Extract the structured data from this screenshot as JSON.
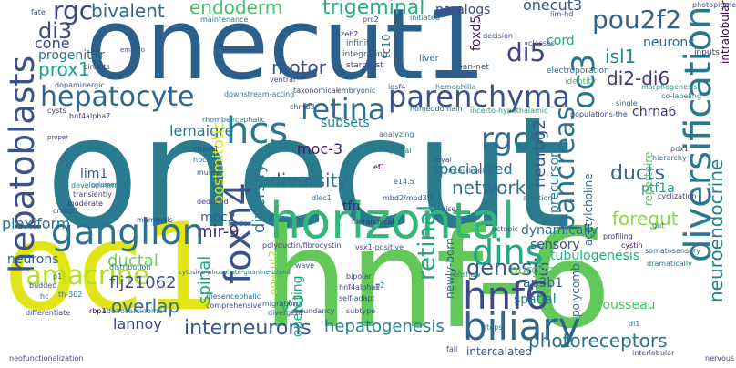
{
  "cloud": {
    "words": [
      {
        "text": "onecut",
        "color": "#2a7b8e",
        "orient": "h"
      },
      {
        "text": "onecut1",
        "color": "#2d5f8b",
        "orient": "h"
      },
      {
        "text": "hnf-6",
        "color": "#63c85a",
        "orient": "h"
      },
      {
        "text": "oc1",
        "color": "#e3e418",
        "orient": "h"
      },
      {
        "text": "horizontal",
        "color": "#34b679",
        "orient": "h"
      },
      {
        "text": "hepatoblasts",
        "color": "#3b528b",
        "orient": "v"
      },
      {
        "text": "diversification",
        "color": "#2a788e",
        "orient": "v"
      },
      {
        "text": "ganglion",
        "color": "#2c718e",
        "orient": "h"
      },
      {
        "text": "foxn4",
        "color": "#3b528b",
        "orient": "v"
      },
      {
        "text": "hnf6",
        "color": "#3e4989",
        "orient": "h"
      },
      {
        "text": "biliary",
        "color": "#32658e",
        "orient": "h"
      },
      {
        "text": "parenchyma",
        "color": "#3b518b",
        "orient": "h"
      },
      {
        "text": "hepatocyte",
        "color": "#31678e",
        "orient": "h"
      },
      {
        "text": "retina",
        "color": "#2e6f8e",
        "orient": "h"
      },
      {
        "text": "dins",
        "color": "#22a884",
        "orient": "h"
      },
      {
        "text": "rgcs",
        "color": "#2e6e8e",
        "orient": "h"
      },
      {
        "text": "pancreas",
        "color": "#2c728e",
        "orient": "v"
      },
      {
        "text": "hcs",
        "color": "#29798e",
        "orient": "h"
      },
      {
        "text": "amacrine",
        "color": "#b5de2b",
        "orient": "h"
      },
      {
        "text": "interneurons",
        "color": "#39568c",
        "orient": "h"
      },
      {
        "text": "di5",
        "color": "#414487",
        "orient": "h"
      },
      {
        "text": "oc3",
        "color": "#2c738e",
        "orient": "v"
      },
      {
        "text": "pou2f2",
        "color": "#33638d",
        "orient": "h"
      },
      {
        "text": "genesis",
        "color": "#365d8d",
        "orient": "h"
      },
      {
        "text": "diversity",
        "color": "#2d708e",
        "orient": "h"
      },
      {
        "text": "network",
        "color": "#2c718e",
        "orient": "h"
      },
      {
        "text": "retinal",
        "color": "#22a884",
        "orient": "v"
      },
      {
        "text": "neuroendocrine",
        "color": "#26828e",
        "orient": "v"
      },
      {
        "text": "rgc",
        "color": "#404588",
        "orient": "h"
      },
      {
        "text": "di3",
        "color": "#3e4989",
        "orient": "h"
      },
      {
        "text": "prox1",
        "color": "#1fa188",
        "orient": "h"
      },
      {
        "text": "bivalent",
        "color": "#31688e",
        "orient": "h"
      },
      {
        "text": "endoderm",
        "color": "#46c06f",
        "orient": "h"
      },
      {
        "text": "trigeminal",
        "color": "#28ae80",
        "orient": "h"
      },
      {
        "text": "onecut3",
        "color": "#38588c",
        "orient": "h"
      },
      {
        "text": "foregut",
        "color": "#90d743",
        "orient": "h"
      },
      {
        "text": "isl1",
        "color": "#24868e",
        "orient": "h"
      },
      {
        "text": "di2-di6",
        "color": "#453781",
        "orient": "h"
      },
      {
        "text": "motor",
        "color": "#3b528b",
        "orient": "h"
      },
      {
        "text": "photoreceptors",
        "color": "#2c728e",
        "orient": "h"
      },
      {
        "text": "hepatogenesis",
        "color": "#26828e",
        "orient": "h"
      },
      {
        "text": "v2",
        "color": "#31b57b",
        "orient": "h"
      },
      {
        "text": "overlap",
        "color": "#2e6f8e",
        "orient": "h"
      },
      {
        "text": "flj21062",
        "color": "#3b528b",
        "orient": "h"
      },
      {
        "text": "lannoy",
        "color": "#404688",
        "orient": "h"
      },
      {
        "text": "ductal",
        "color": "#6ccd5a",
        "orient": "h"
      },
      {
        "text": "spinal",
        "color": "#20a486",
        "orient": "v"
      },
      {
        "text": "mir-9",
        "color": "#482475",
        "orient": "h"
      },
      {
        "text": "moc2",
        "color": "#38598c",
        "orient": "h"
      },
      {
        "text": "plexiform",
        "color": "#2d718e",
        "orient": "h"
      },
      {
        "text": "neurons",
        "color": "#33638d",
        "orient": "h"
      },
      {
        "text": "lim1",
        "color": "#375a8c",
        "orient": "h"
      },
      {
        "text": "cone",
        "color": "#3f4788",
        "orient": "h"
      },
      {
        "text": "progenitor",
        "color": "#2a788e",
        "orient": "h"
      },
      {
        "text": "lemaigre",
        "color": "#2b758e",
        "orient": "h"
      },
      {
        "text": "diversify",
        "color": "#2a788e",
        "orient": "v"
      },
      {
        "text": "postmitotic",
        "color": "#dde318",
        "orient": "v"
      },
      {
        "text": "moc-3",
        "color": "#481769",
        "orient": "h"
      },
      {
        "text": "specialized",
        "color": "#2e6e8e",
        "orient": "h"
      },
      {
        "text": "neurog2",
        "color": "#38598c",
        "orient": "v"
      },
      {
        "text": "precursors",
        "color": "#26828e",
        "orient": "v"
      },
      {
        "text": "ducts",
        "color": "#33638d",
        "orient": "h"
      },
      {
        "text": "chrna6",
        "color": "#46327e",
        "orient": "h"
      },
      {
        "text": "ptf1a",
        "color": "#1f9e89",
        "orient": "h"
      },
      {
        "text": "dynamically",
        "color": "#2d708e",
        "orient": "h"
      },
      {
        "text": "sensory",
        "color": "#3b528b",
        "orient": "h"
      },
      {
        "text": "tubulogenesis",
        "color": "#27ad81",
        "orient": "h"
      },
      {
        "text": "burglin",
        "color": "#5ec962",
        "orient": "h"
      },
      {
        "text": "ap3b1",
        "color": "#375a8c",
        "orient": "h"
      },
      {
        "text": "spatial",
        "color": "#26828e",
        "orient": "h"
      },
      {
        "text": "rousseau",
        "color": "#4ac16d",
        "orient": "h"
      },
      {
        "text": "polycomb",
        "color": "#31688e",
        "orient": "v"
      },
      {
        "text": "acetylcholine",
        "color": "#31678e",
        "orient": "v"
      },
      {
        "text": "newly-born",
        "color": "#34608d",
        "orient": "v"
      },
      {
        "text": "tfn",
        "color": "#482173",
        "orient": "h"
      },
      {
        "text": "subsets",
        "color": "#26828e",
        "orient": "h"
      },
      {
        "text": "operating",
        "color": "#20a386",
        "orient": "v"
      },
      {
        "text": "onecut2",
        "color": "#a8db34",
        "orient": "v"
      },
      {
        "text": "intralobular",
        "color": "#440154",
        "orient": "v"
      },
      {
        "text": "repertoire",
        "color": "#52c569",
        "orient": "v"
      },
      {
        "text": "tc10",
        "color": "#26828e",
        "orient": "v"
      },
      {
        "text": "foxd5",
        "color": "#481668",
        "orient": "v"
      },
      {
        "text": "paralogs",
        "color": "#3f4788",
        "orient": "h"
      },
      {
        "text": "cord",
        "color": "#20a486",
        "orient": "h"
      },
      {
        "text": "neurons",
        "color": "#31688e",
        "orient": "h"
      },
      {
        "text": "inputs",
        "color": "#46327e",
        "orient": "h"
      },
      {
        "text": "liver",
        "color": "#2a788e",
        "orient": "h"
      },
      {
        "text": "pan-net",
        "color": "#39568c",
        "orient": "h"
      },
      {
        "text": "starburst",
        "color": "#3f4788",
        "orient": "h"
      },
      {
        "text": "integrating",
        "color": "#375a8c",
        "orient": "h"
      },
      {
        "text": "infinite",
        "color": "#31688e",
        "orient": "h"
      },
      {
        "text": "zeb2",
        "color": "#482878",
        "orient": "h"
      },
      {
        "text": "electroporation",
        "color": "#2c718e",
        "orient": "h"
      },
      {
        "text": "identity",
        "color": "#3ebc74",
        "orient": "h"
      },
      {
        "text": "morphogenesis",
        "color": "#1f9a8a",
        "orient": "h"
      },
      {
        "text": "co-labeling",
        "color": "#2a788e",
        "orient": "h"
      },
      {
        "text": "hemophilia",
        "color": "#26828e",
        "orient": "h"
      },
      {
        "text": "igsf4",
        "color": "#3b528b",
        "orient": "h"
      },
      {
        "text": "taxonomical",
        "color": "#433e85",
        "orient": "h"
      },
      {
        "text": "embryonic",
        "color": "#39568c",
        "orient": "h"
      },
      {
        "text": "downstream-acting",
        "color": "#2a788e",
        "orient": "h"
      },
      {
        "text": "chrnb3",
        "color": "#3b528b",
        "orient": "h"
      },
      {
        "text": "homeodomain",
        "color": "#31688e",
        "orient": "h"
      },
      {
        "text": "incerto-hypothalamic",
        "color": "#1f9e89",
        "orient": "h"
      },
      {
        "text": "populations-the",
        "color": "#404588",
        "orient": "h"
      },
      {
        "text": "hnf4alpha7",
        "color": "#433d84",
        "orient": "h"
      },
      {
        "text": "dopaminergic",
        "color": "#3b528b",
        "orient": "h"
      },
      {
        "text": "cysts",
        "color": "#3e4a89",
        "orient": "h"
      },
      {
        "text": "developmental",
        "color": "#2c718e",
        "orient": "h"
      },
      {
        "text": "transiently",
        "color": "#3e4989",
        "orient": "h"
      },
      {
        "text": "moderate",
        "color": "#472c7a",
        "orient": "h"
      },
      {
        "text": "crabp1",
        "color": "#3b528b",
        "orient": "h"
      },
      {
        "text": "mammals",
        "color": "#3f4788",
        "orient": "h"
      },
      {
        "text": "leyden",
        "color": "#2a788e",
        "orient": "h"
      },
      {
        "text": "hierarchical",
        "color": "#482677",
        "orient": "h"
      },
      {
        "text": "rise",
        "color": "#3f4889",
        "orient": "h"
      },
      {
        "text": "mbd2/mbd3l1",
        "color": "#39558c",
        "orient": "h"
      },
      {
        "text": "dlec1",
        "color": "#2a788e",
        "orient": "h"
      },
      {
        "text": "polyductin/fibrocystin",
        "color": "#433e85",
        "orient": "h"
      },
      {
        "text": "vsx1-positive",
        "color": "#3b528b",
        "orient": "h"
      },
      {
        "text": "profiling",
        "color": "#472f7d",
        "orient": "h"
      },
      {
        "text": "somatosensory",
        "color": "#31688e",
        "orient": "h"
      },
      {
        "text": "dramatically",
        "color": "#2a788e",
        "orient": "h"
      },
      {
        "text": "cystin",
        "color": "#470e61",
        "orient": "h"
      },
      {
        "text": "gut",
        "color": "#2a788e",
        "orient": "h"
      },
      {
        "text": "cyclization",
        "color": "#453882",
        "orient": "h"
      },
      {
        "text": "hierarchy",
        "color": "#31688e",
        "orient": "h"
      },
      {
        "text": "pdx1",
        "color": "#3e4989",
        "orient": "h"
      },
      {
        "text": "ablation",
        "color": "#2d708e",
        "orient": "h"
      },
      {
        "text": "intestinally",
        "color": "#26828e",
        "orient": "h"
      },
      {
        "text": "royal",
        "color": "#3b528b",
        "orient": "h"
      },
      {
        "text": "e14.5",
        "color": "#31688e",
        "orient": "h"
      },
      {
        "text": "ef1",
        "color": "#440154",
        "orient": "h"
      },
      {
        "text": "portal",
        "color": "#2a788e",
        "orient": "h"
      },
      {
        "text": "ctnna1",
        "color": "#3e4989",
        "orient": "h"
      },
      {
        "text": "muller",
        "color": "#3b528b",
        "orient": "h"
      },
      {
        "text": "deduced",
        "color": "#3e4989",
        "orient": "h"
      },
      {
        "text": "hpc2",
        "color": "#2a788e",
        "orient": "h"
      },
      {
        "text": "analyzing",
        "color": "#2a788e",
        "orient": "h"
      },
      {
        "text": "bipolar",
        "color": "#3e4989",
        "orient": "h"
      },
      {
        "text": "p2",
        "color": "#31688e",
        "orient": "h"
      },
      {
        "text": "self-adapt",
        "color": "#3b528b",
        "orient": "h"
      },
      {
        "text": "subtype",
        "color": "#3b528b",
        "orient": "h"
      },
      {
        "text": "redundancy",
        "color": "#3b528b",
        "orient": "h"
      },
      {
        "text": "hnf4alpha1",
        "color": "#3e4989",
        "orient": "h"
      },
      {
        "text": "migration",
        "color": "#3b528b",
        "orient": "h"
      },
      {
        "text": "divergent",
        "color": "#3b528b",
        "orient": "h"
      },
      {
        "text": "comprehensive",
        "color": "#3e4989",
        "orient": "h"
      },
      {
        "text": "mesencephalic",
        "color": "#31688e",
        "orient": "h"
      },
      {
        "text": "adenocarcinoma",
        "color": "#2a788e",
        "orient": "h"
      },
      {
        "text": "rbp1",
        "color": "#440154",
        "orient": "h"
      },
      {
        "text": "differentiate",
        "color": "#3b528b",
        "orient": "h"
      },
      {
        "text": "neofunctionalization",
        "color": "#3e4989",
        "orient": "h"
      },
      {
        "text": "distribution",
        "color": "#2a788e",
        "orient": "h"
      },
      {
        "text": "cytosine-phosphate-guanine-island",
        "color": "#2a788e",
        "orient": "h"
      },
      {
        "text": "budded",
        "color": "#3b528b",
        "orient": "h"
      },
      {
        "text": "th-302",
        "color": "#2a788e",
        "orient": "h"
      },
      {
        "text": "intercalated",
        "color": "#3b528b",
        "orient": "h"
      },
      {
        "text": "interlobular",
        "color": "#3e4989",
        "orient": "h"
      },
      {
        "text": "renshaw",
        "color": "#2a788e",
        "orient": "h"
      },
      {
        "text": "fail",
        "color": "#3e4989",
        "orient": "h"
      },
      {
        "text": "ectopic",
        "color": "#3b528b",
        "orient": "h"
      },
      {
        "text": "classes",
        "color": "#3e4989",
        "orient": "h"
      },
      {
        "text": "decision",
        "color": "#3b528b",
        "orient": "h"
      },
      {
        "text": "single",
        "color": "#31688e",
        "orient": "h"
      },
      {
        "text": "photopigment",
        "color": "#3b528b",
        "orient": "h"
      },
      {
        "text": "maintenance",
        "color": "#2a788e",
        "orient": "h"
      },
      {
        "text": "initiated",
        "color": "#2a788e",
        "orient": "h"
      },
      {
        "text": "circuits",
        "color": "#3e4989",
        "orient": "h"
      },
      {
        "text": "fate",
        "color": "#3b528b",
        "orient": "h"
      },
      {
        "text": "nervous",
        "color": "#3e4989",
        "orient": "h"
      },
      {
        "text": "p1",
        "color": "#2a788e",
        "orient": "h"
      },
      {
        "text": "hc",
        "color": "#2a788e",
        "orient": "h"
      },
      {
        "text": "wave",
        "color": "#3b528b",
        "orient": "h"
      },
      {
        "text": "di1",
        "color": "#2a788e",
        "orient": "h"
      },
      {
        "text": "steps",
        "color": "#2a788e",
        "orient": "h"
      },
      {
        "text": "embryo",
        "color": "#3b528b",
        "orient": "h"
      },
      {
        "text": "columns",
        "color": "#2a788e",
        "orient": "h"
      },
      {
        "text": "proper",
        "color": "#3e4989",
        "orient": "h"
      },
      {
        "text": "lim-hd",
        "color": "#3e4989",
        "orient": "h"
      },
      {
        "text": "rhombencephalic",
        "color": "#2a788e",
        "orient": "h"
      },
      {
        "text": "ventral",
        "color": "#3b528b",
        "orient": "h"
      },
      {
        "text": "prc2",
        "color": "#3e4989",
        "orient": "h"
      }
    ]
  }
}
